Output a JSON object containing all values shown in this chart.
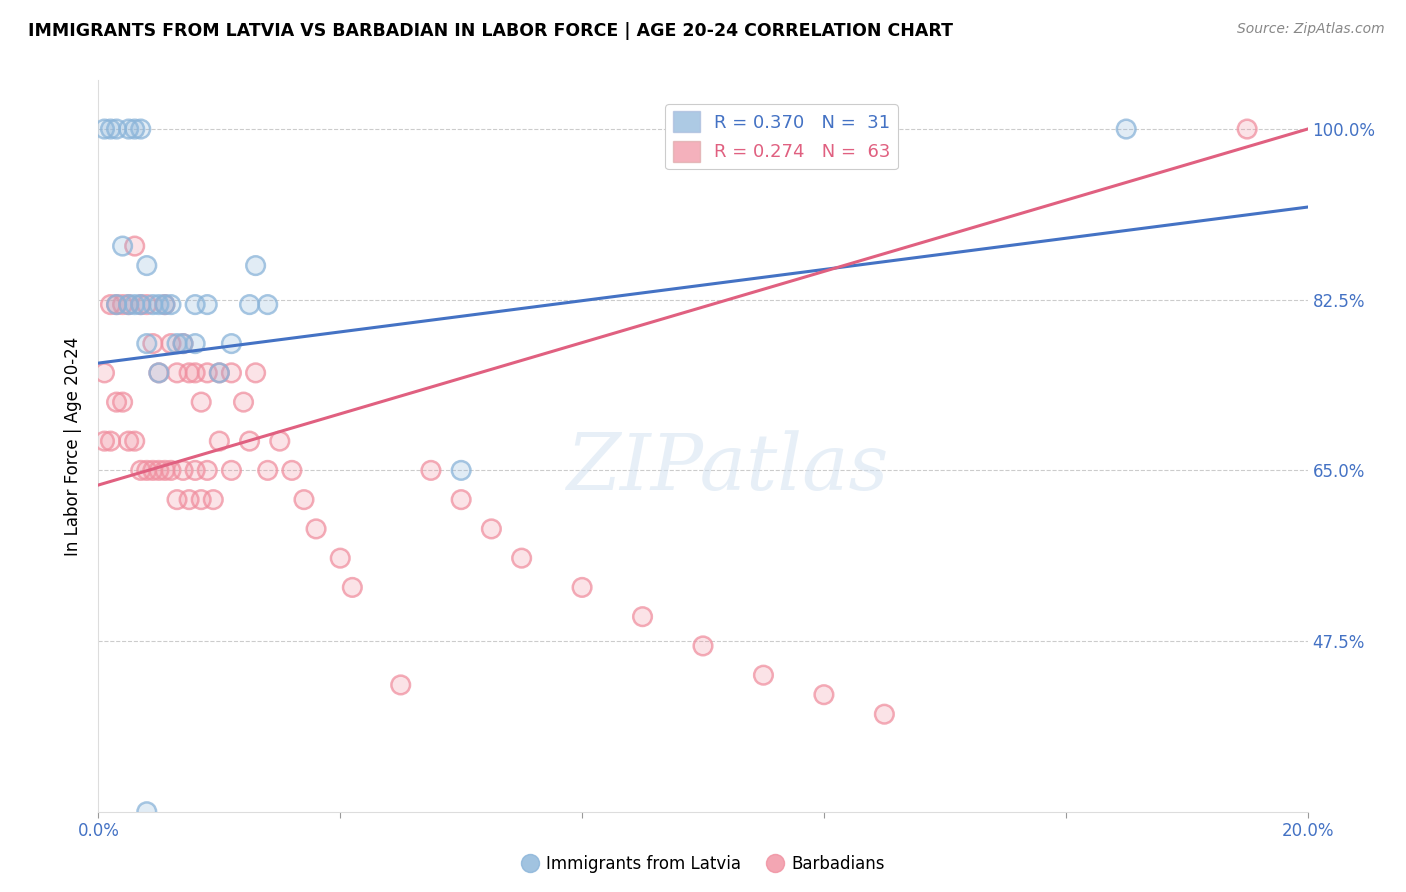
{
  "title": "IMMIGRANTS FROM LATVIA VS BARBADIAN IN LABOR FORCE | AGE 20-24 CORRELATION CHART",
  "source": "Source: ZipAtlas.com",
  "ylabel": "In Labor Force | Age 20-24",
  "ytick_vals": [
    1.0,
    0.825,
    0.65,
    0.475
  ],
  "ytick_labels": [
    "100.0%",
    "82.5%",
    "65.0%",
    "47.5%"
  ],
  "xmin": 0.0,
  "xmax": 0.2,
  "ymin": 0.3,
  "ymax": 1.05,
  "watermark": "ZIPatlas",
  "legend_blue_label": "R = 0.370   N =  31",
  "legend_pink_label": "R = 0.274   N =  63",
  "blue_color": "#8ab4d9",
  "pink_color": "#f090a0",
  "blue_line_color": "#4472c4",
  "pink_line_color": "#e06080",
  "legend_label_blue": "Immigrants from Latvia",
  "legend_label_pink": "Barbadians",
  "blue_scatter_x": [
    0.001,
    0.002,
    0.003,
    0.003,
    0.004,
    0.005,
    0.005,
    0.006,
    0.006,
    0.007,
    0.007,
    0.008,
    0.008,
    0.009,
    0.01,
    0.01,
    0.011,
    0.012,
    0.013,
    0.014,
    0.016,
    0.016,
    0.018,
    0.02,
    0.022,
    0.025,
    0.026,
    0.028,
    0.06,
    0.17,
    0.008
  ],
  "blue_scatter_y": [
    1.0,
    1.0,
    1.0,
    0.82,
    0.88,
    1.0,
    0.82,
    1.0,
    0.82,
    1.0,
    0.82,
    0.86,
    0.78,
    0.82,
    0.82,
    0.75,
    0.82,
    0.82,
    0.78,
    0.78,
    0.78,
    0.82,
    0.82,
    0.75,
    0.78,
    0.82,
    0.86,
    0.82,
    0.65,
    1.0,
    0.3
  ],
  "pink_scatter_x": [
    0.001,
    0.001,
    0.002,
    0.002,
    0.003,
    0.003,
    0.004,
    0.004,
    0.005,
    0.005,
    0.006,
    0.006,
    0.007,
    0.007,
    0.008,
    0.008,
    0.009,
    0.009,
    0.01,
    0.01,
    0.011,
    0.011,
    0.012,
    0.012,
    0.013,
    0.013,
    0.014,
    0.014,
    0.015,
    0.015,
    0.016,
    0.016,
    0.017,
    0.017,
    0.018,
    0.018,
    0.019,
    0.02,
    0.02,
    0.022,
    0.022,
    0.024,
    0.025,
    0.026,
    0.028,
    0.03,
    0.032,
    0.034,
    0.036,
    0.04,
    0.042,
    0.055,
    0.06,
    0.065,
    0.07,
    0.08,
    0.09,
    0.1,
    0.11,
    0.12,
    0.13,
    0.19,
    0.05
  ],
  "pink_scatter_y": [
    0.75,
    0.68,
    0.82,
    0.68,
    0.82,
    0.72,
    0.82,
    0.72,
    0.82,
    0.68,
    0.88,
    0.68,
    0.82,
    0.65,
    0.82,
    0.65,
    0.78,
    0.65,
    0.75,
    0.65,
    0.82,
    0.65,
    0.78,
    0.65,
    0.75,
    0.62,
    0.78,
    0.65,
    0.75,
    0.62,
    0.75,
    0.65,
    0.72,
    0.62,
    0.75,
    0.65,
    0.62,
    0.75,
    0.68,
    0.75,
    0.65,
    0.72,
    0.68,
    0.75,
    0.65,
    0.68,
    0.65,
    0.62,
    0.59,
    0.56,
    0.53,
    0.65,
    0.62,
    0.59,
    0.56,
    0.53,
    0.5,
    0.47,
    0.44,
    0.42,
    0.4,
    1.0,
    0.43
  ],
  "blue_line_x": [
    0.0,
    0.2
  ],
  "blue_line_y": [
    0.76,
    0.92
  ],
  "pink_line_x": [
    0.0,
    0.2
  ],
  "pink_line_y": [
    0.635,
    1.0
  ],
  "grid_color": "#cccccc",
  "bg_color": "#ffffff"
}
